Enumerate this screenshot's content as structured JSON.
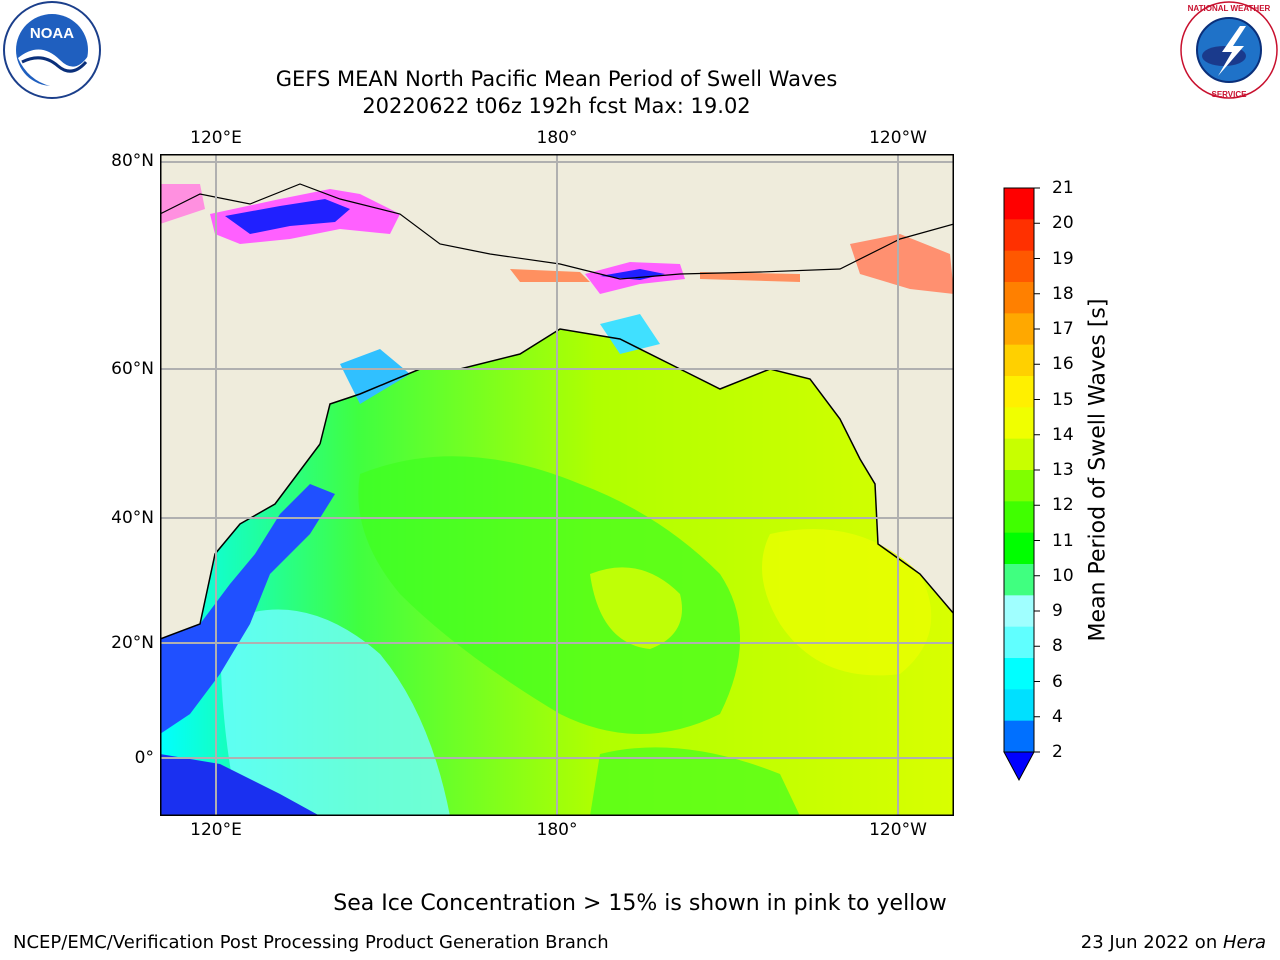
{
  "title": {
    "line1": "GEFS MEAN North Pacific Mean Period of Swell Waves",
    "line2": "20220622 t06z 192h fcst   Max: 19.02"
  },
  "logos": {
    "left": {
      "icon": "noaa-logo",
      "text": "NOAA"
    },
    "right": {
      "icon": "nws-logo",
      "text": "NATIONAL WEATHER SERVICE"
    }
  },
  "map": {
    "top_lon_labels": [
      "120°E",
      "180°",
      "120°W"
    ],
    "bottom_lon_labels": [
      "120°E",
      "180°",
      "120°W"
    ],
    "lat_labels": [
      "80°N",
      "60°N",
      "40°N",
      "20°N",
      "0°"
    ],
    "land_color": "#efecdc",
    "grid_color": "#b0b0b0"
  },
  "colorbar": {
    "label": "Mean Period of Swell Waves [s]",
    "ticks": [
      "21",
      "20",
      "19",
      "18",
      "17",
      "16",
      "15",
      "14",
      "13",
      "12",
      "11",
      "10",
      "9",
      "8",
      "6",
      "4",
      "2"
    ],
    "colors": [
      "#ff0000",
      "#ff3000",
      "#ff5800",
      "#ff8000",
      "#ffa800",
      "#ffd000",
      "#fff000",
      "#f0ff00",
      "#c8ff00",
      "#80ff00",
      "#40ff00",
      "#00ff00",
      "#40ff80",
      "#a0ffff",
      "#60ffff",
      "#00ffff",
      "#00e0ff",
      "#0070ff"
    ],
    "under_color": "#0000ff"
  },
  "note": "Sea Ice Concentration > 15% is shown in pink to yellow",
  "footer": {
    "left": "NCEP/EMC/Verification Post Processing Product Generation Branch",
    "date": "23 Jun 2022 on ",
    "host": "Hera"
  }
}
